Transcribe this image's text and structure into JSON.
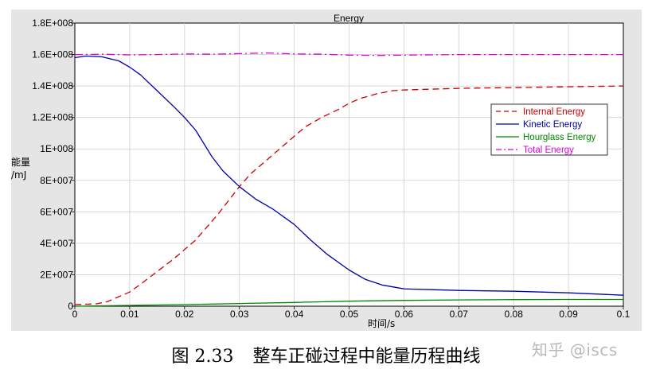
{
  "chart_data": {
    "type": "line",
    "title": "Energy",
    "xlabel": "时间/s",
    "ylabel_line1": "能量",
    "ylabel_line2": "/mJ",
    "xlim": [
      0,
      0.1
    ],
    "ylim": [
      0,
      180000000
    ],
    "x_ticks": [
      0,
      0.01,
      0.02,
      0.03,
      0.04,
      0.05,
      0.06,
      0.07,
      0.08,
      0.09,
      0.1
    ],
    "x_tick_labels": [
      "0",
      "0.01",
      "0.02",
      "0.03",
      "0.04",
      "0.05",
      "0.06",
      "0.07",
      "0.08",
      "0.09",
      "0.1"
    ],
    "y_ticks": [
      0,
      20000000,
      40000000,
      60000000,
      80000000,
      100000000,
      120000000,
      140000000,
      160000000,
      180000000
    ],
    "y_tick_labels": [
      "0",
      "2E+007",
      "4E+007",
      "6E+007",
      "8E+007",
      "1E+008",
      "1.2E+008",
      "1.4E+008",
      "1.6E+008",
      "1.8E+008"
    ],
    "grid": true,
    "legend_position": "right",
    "series": [
      {
        "name": "Internal Energy",
        "color": "#cc0000",
        "dash": "dashed",
        "x": [
          0,
          0.004,
          0.006,
          0.008,
          0.01,
          0.012,
          0.015,
          0.018,
          0.02,
          0.022,
          0.024,
          0.026,
          0.028,
          0.03,
          0.032,
          0.035,
          0.038,
          0.04,
          0.042,
          0.045,
          0.048,
          0.05,
          0.052,
          0.055,
          0.058,
          0.06,
          0.065,
          0.07,
          0.08,
          0.09,
          0.1
        ],
        "y": [
          1000000,
          1500000,
          3000000,
          6000000,
          9000000,
          14000000,
          22000000,
          30000000,
          36000000,
          42000000,
          50000000,
          58000000,
          67000000,
          76000000,
          84000000,
          93000000,
          102000000,
          108000000,
          114000000,
          120000000,
          125000000,
          129000000,
          132000000,
          135000000,
          137000000,
          137500000,
          138000000,
          138500000,
          139000000,
          139500000,
          140000000
        ]
      },
      {
        "name": "Kinetic Energy",
        "color": "#0000aa",
        "dash": "solid",
        "x": [
          0,
          0.002,
          0.005,
          0.008,
          0.01,
          0.012,
          0.015,
          0.018,
          0.02,
          0.022,
          0.025,
          0.027,
          0.03,
          0.033,
          0.036,
          0.04,
          0.043,
          0.046,
          0.05,
          0.053,
          0.056,
          0.06,
          0.065,
          0.07,
          0.08,
          0.09,
          0.1
        ],
        "y": [
          158000000,
          159000000,
          158500000,
          156000000,
          152000000,
          147000000,
          137000000,
          127000000,
          120000000,
          112000000,
          95000000,
          86000000,
          76000000,
          68000000,
          62000000,
          52000000,
          42000000,
          33000000,
          23000000,
          17000000,
          13500000,
          11000000,
          10500000,
          10000000,
          9500000,
          8500000,
          7000000
        ]
      },
      {
        "name": "Hourglass Energy",
        "color": "#008800",
        "dash": "solid",
        "x": [
          0,
          0.01,
          0.02,
          0.03,
          0.04,
          0.05,
          0.06,
          0.07,
          0.08,
          0.09,
          0.1
        ],
        "y": [
          0,
          500000,
          1000000,
          1700000,
          2400000,
          3200000,
          3700000,
          4000000,
          4200000,
          4300000,
          4300000
        ]
      },
      {
        "name": "Total Energy",
        "color": "#dd00dd",
        "dash": "dashdot",
        "x": [
          0,
          0.005,
          0.01,
          0.015,
          0.02,
          0.025,
          0.03,
          0.035,
          0.04,
          0.045,
          0.05,
          0.055,
          0.06,
          0.065,
          0.07,
          0.08,
          0.09,
          0.1
        ],
        "y": [
          160000000,
          160200000,
          159800000,
          160000000,
          160400000,
          160200000,
          160600000,
          161000000,
          160400000,
          160200000,
          159600000,
          159400000,
          159600000,
          159800000,
          160000000,
          160000000,
          160000000,
          160000000
        ]
      }
    ]
  },
  "caption": {
    "figure_number": "图 2.33",
    "text": "整车正碰过程中能量历程曲线"
  },
  "watermark": "知乎 @iscs"
}
